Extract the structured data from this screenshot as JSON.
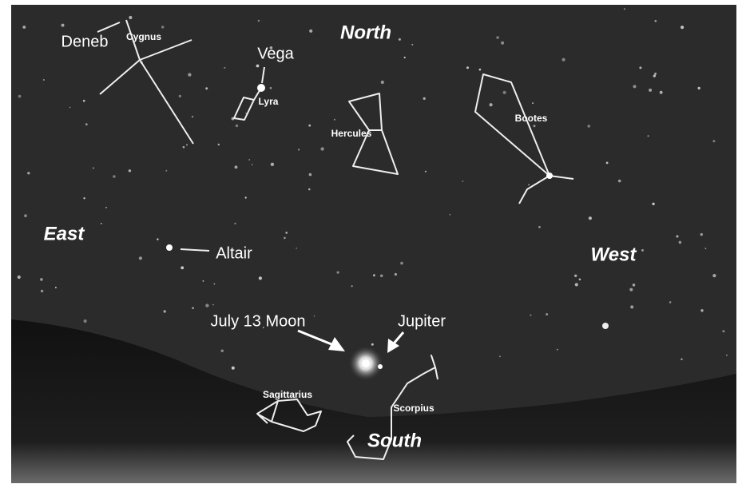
{
  "directions": [
    "North",
    "East",
    "West",
    "South"
  ],
  "constellations": [
    "Cygnus",
    "Lyra",
    "Hercules",
    "Bootes",
    "Sagittarius",
    "Scorpius"
  ],
  "stars": [
    "Deneb",
    "Vega",
    "Altair"
  ],
  "objects": [
    "July 13 Moon",
    "Jupiter"
  ]
}
